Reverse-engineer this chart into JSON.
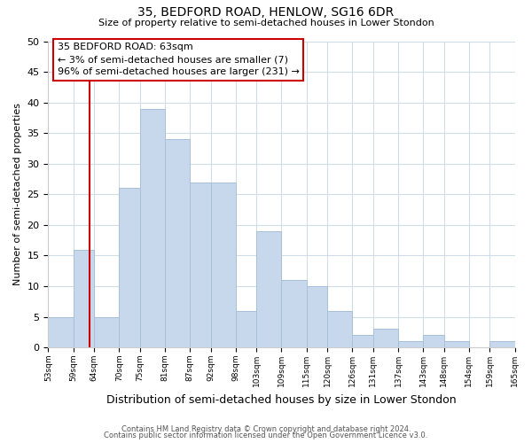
{
  "title1": "35, BEDFORD ROAD, HENLOW, SG16 6DR",
  "title2": "Size of property relative to semi-detached houses in Lower Stondon",
  "xlabel": "Distribution of semi-detached houses by size in Lower Stondon",
  "ylabel": "Number of semi-detached properties",
  "bin_labels": [
    "53sqm",
    "59sqm",
    "64sqm",
    "70sqm",
    "75sqm",
    "81sqm",
    "87sqm",
    "92sqm",
    "98sqm",
    "103sqm",
    "109sqm",
    "115sqm",
    "120sqm",
    "126sqm",
    "131sqm",
    "137sqm",
    "143sqm",
    "148sqm",
    "154sqm",
    "159sqm",
    "165sqm"
  ],
  "bar_heights": [
    5,
    16,
    5,
    26,
    39,
    34,
    27,
    27,
    6,
    19,
    11,
    10,
    6,
    2,
    3,
    1,
    2,
    1,
    0,
    1
  ],
  "bar_color": "#c8d8ec",
  "bar_edge_color": "#a8c0d8",
  "vline_color": "#cc0000",
  "ylim": [
    0,
    50
  ],
  "bin_edges": [
    53,
    59,
    64,
    70,
    75,
    81,
    87,
    92,
    98,
    103,
    109,
    115,
    120,
    126,
    131,
    137,
    143,
    148,
    154,
    159,
    165
  ],
  "annotation_line1": "35 BEDFORD ROAD: 63sqm",
  "annotation_line2": "← 3% of semi-detached houses are smaller (7)",
  "annotation_line3": "96% of semi-detached houses are larger (231) →",
  "vline_x": 63,
  "footer1": "Contains HM Land Registry data © Crown copyright and database right 2024.",
  "footer2": "Contains public sector information licensed under the Open Government Licence v3.0.",
  "grid_color": "#d0dce8",
  "annotation_box_color": "#cc0000"
}
